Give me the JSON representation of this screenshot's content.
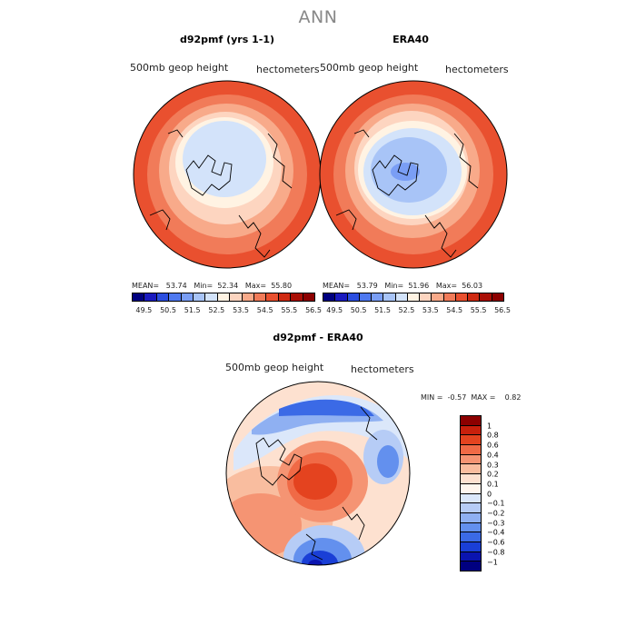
{
  "title": "ANN",
  "panels": [
    {
      "title": "d92pmf (yrs 1-1)",
      "field_label": "500mb geop height",
      "units": "hectometers",
      "stats": {
        "mean_label": "MEAN=",
        "mean": "53.74",
        "min_label": "Min=",
        "min": "52.34",
        "max_label": "Max=",
        "max": "55.80"
      }
    },
    {
      "title": "ERA40",
      "field_label": "500mb geop height",
      "units": "hectometers",
      "stats": {
        "mean_label": "MEAN=",
        "mean": "53.79",
        "min_label": "Min=",
        "min": "51.96",
        "max_label": "Max=",
        "max": "56.03"
      }
    },
    {
      "title": "d92pmf - ERA40",
      "field_label": "500mb geop height",
      "units": "hectometers",
      "stats": {
        "min_label": "MIN =",
        "min": "-0.57",
        "max_label": "MAX =",
        "max": "0.82"
      }
    }
  ],
  "colorbar_top": {
    "labels": [
      "49.5",
      "50.5",
      "51.5",
      "52.5",
      "53.5",
      "54.5",
      "55.5",
      "56.5"
    ],
    "colors": [
      "#00007f",
      "#1a1abf",
      "#2b4ee0",
      "#4f79f0",
      "#7a9ef5",
      "#a8c4f7",
      "#d3e3fa",
      "#fff3e3",
      "#fdd5c0",
      "#f8aa8a",
      "#f17b59",
      "#e9502f",
      "#cf2a12",
      "#aa0f06",
      "#8c0000"
    ]
  },
  "colorbar_diff": {
    "labels": [
      "1",
      "0.8",
      "0.6",
      "0.4",
      "0.3",
      "0.2",
      "0.1",
      "0",
      "−0.1",
      "−0.2",
      "−0.3",
      "−0.4",
      "−0.6",
      "−0.8",
      "−1"
    ],
    "colors": [
      "#8c0000",
      "#c8200c",
      "#e4431f",
      "#f06a46",
      "#f59473",
      "#f9bd9f",
      "#fde1d0",
      "#fff6ee",
      "#dbe7fa",
      "#b6ccf6",
      "#8fb0f2",
      "#6390ee",
      "#3b6ae6",
      "#1a3fd6",
      "#0a14b0",
      "#000080"
    ]
  },
  "maps": {
    "left": {
      "cool_patch": true
    },
    "right": {
      "cool_patch": true
    },
    "diff": {
      "pattern": "dipole"
    }
  }
}
